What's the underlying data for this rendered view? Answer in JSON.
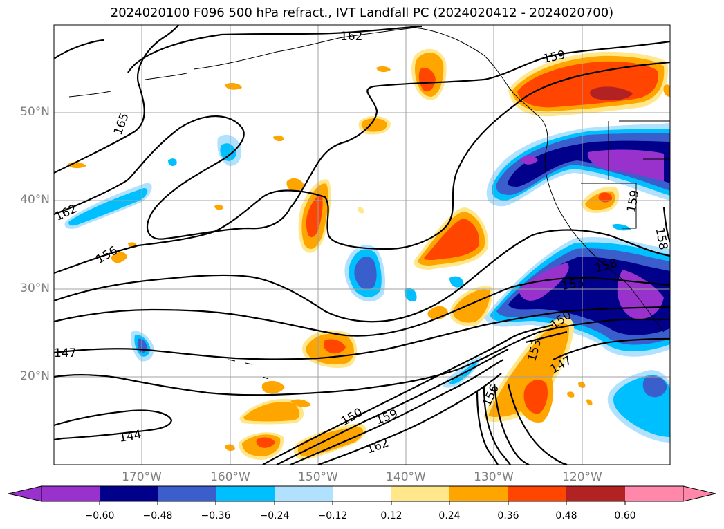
{
  "title": "2024020100 F096 500 hPa refract., IVT Landfall PC (2024020412 - 2024020700)",
  "map": {
    "lat_labels": [
      "50°N",
      "40°N",
      "30°N",
      "20°N"
    ],
    "lon_labels": [
      "170°W",
      "160°W",
      "150°W",
      "140°W",
      "130°W",
      "120°W"
    ],
    "contour_labels": [
      "162",
      "159",
      "165",
      "162",
      "156",
      "159",
      "158",
      "158",
      "153",
      "150",
      "147",
      "153",
      "147",
      "156",
      "150",
      "159",
      "162",
      "144"
    ],
    "colors": {
      "coast": "#000000",
      "grid": "#a0a0a0",
      "tick_label": "#7f7f7f"
    }
  },
  "colorbar": {
    "ticks": [
      "−0.60",
      "−0.48",
      "−0.36",
      "−0.24",
      "−0.12",
      "0.12",
      "0.24",
      "0.36",
      "0.48",
      "0.60"
    ],
    "colors": [
      "#9932cc",
      "#00008b",
      "#3a5fcd",
      "#00bfff",
      "#b0e2ff",
      "#ffffff",
      "#ffe78a",
      "#ffa500",
      "#ff4500",
      "#b22222",
      "#ff88aa"
    ]
  }
}
